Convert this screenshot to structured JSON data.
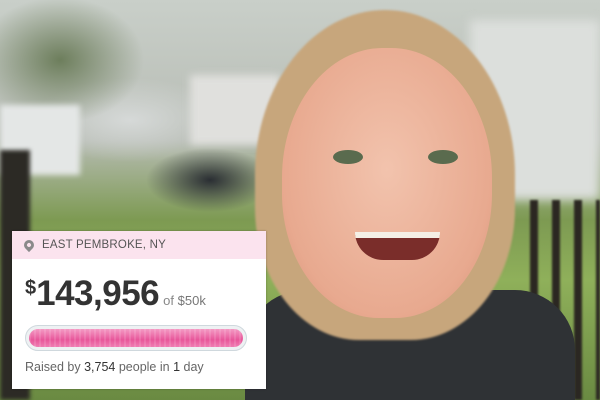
{
  "campaign": {
    "location": "EAST PEMBROKE, NY",
    "location_icon": "map-pin-icon",
    "currency_symbol": "$",
    "amount_raised": "143,956",
    "goal_prefix": "of",
    "goal": "$50k",
    "progress_percent": 100,
    "progress_color": "#e8569a",
    "raised_prefix": "Raised by",
    "donor_count": "3,754",
    "raised_middle": "people in",
    "duration_count": "1",
    "duration_unit": "day"
  }
}
